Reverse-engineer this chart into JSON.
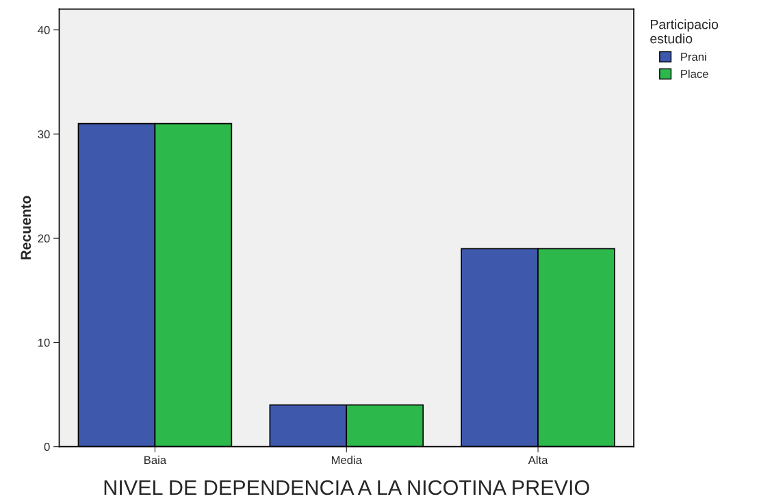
{
  "chart_data": {
    "type": "bar",
    "xlabel": "NIVEL DE DEPENDENCIA A LA NICOTINA PREVIO",
    "ylabel": "Recuento",
    "legend_title": "Participacio\nestudio",
    "categories": [
      "Baia",
      "Media",
      "Alta"
    ],
    "series": [
      {
        "name": "Prani",
        "color": "#3e58ac",
        "values": [
          31,
          4,
          19
        ]
      },
      {
        "name": "Place",
        "color": "#2db84b",
        "values": [
          31,
          4,
          19
        ]
      }
    ],
    "ylim": [
      0,
      42
    ],
    "yticks": [
      0,
      10,
      20,
      30,
      40
    ],
    "grid": false,
    "legend": "top right"
  }
}
